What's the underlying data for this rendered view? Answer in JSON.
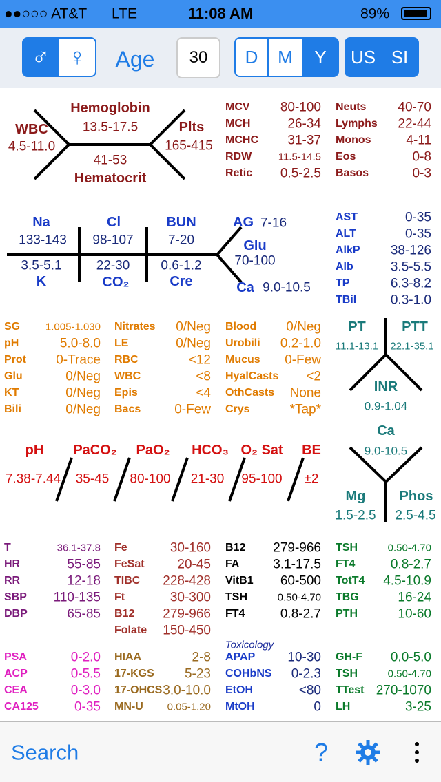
{
  "status_bar": {
    "carrier": "●●○○○ AT&T",
    "network": "LTE",
    "time": "11:08 AM",
    "battery": "89%"
  },
  "toolbar": {
    "male": "♂",
    "female": "♀",
    "age_label": "Age",
    "age_value": "30",
    "units": [
      "D",
      "M",
      "Y"
    ],
    "systems": [
      "US",
      "SI"
    ]
  },
  "cbc": {
    "hemoglobin_label": "Hemoglobin",
    "hemoglobin": "13.5-17.5",
    "wbc_label": "WBC",
    "wbc": "4.5-11.0",
    "plts_label": "Plts",
    "plts": "165-415",
    "hematocrit": "41-53",
    "hematocrit_label": "Hematocrit"
  },
  "bmp": {
    "na_label": "Na",
    "na": "133-143",
    "cl_label": "Cl",
    "cl": "98-107",
    "bun_label": "BUN",
    "bun": "7-20",
    "ag_label": "AG",
    "ag": "7-16",
    "glu_label": "Glu",
    "glu": "70-100",
    "k": "3.5-5.1",
    "k_label": "K",
    "co2": "22-30",
    "co2_label": "CO₂",
    "cre": "0.6-1.2",
    "cre_label": "Cre",
    "ca_label": "Ca",
    "ca": "9.0-10.5"
  },
  "coag": {
    "pt_label": "PT",
    "ptt_label": "PTT",
    "pt": "11.1-13.1",
    "ptt": "22.1-35.1",
    "inr_label": "INR",
    "inr": "0.9-1.04"
  },
  "minerals": {
    "ca_label": "Ca",
    "ca": "9.0-10.5",
    "mg_label": "Mg",
    "mg": "1.5-2.5",
    "phos_label": "Phos",
    "phos": "2.5-4.5"
  },
  "abg": {
    "labels": [
      "pH",
      "PaCO₂",
      "PaO₂",
      "HCO₃",
      "O₂ Sat",
      "BE"
    ],
    "values": [
      "7.38-7.44",
      "35-45",
      "80-100",
      "21-30",
      "95-100",
      "±2"
    ]
  },
  "lists": {
    "indices": [
      [
        "MCV",
        "80-100"
      ],
      [
        "MCH",
        "26-34"
      ],
      [
        "MCHC",
        "31-37"
      ],
      [
        "RDW",
        "11.5-14.5"
      ],
      [
        "Retic",
        "0.5-2.5"
      ]
    ],
    "diff": [
      [
        "Neuts",
        "40-70"
      ],
      [
        "Lymphs",
        "22-44"
      ],
      [
        "Monos",
        "4-11"
      ],
      [
        "Eos",
        "0-8"
      ],
      [
        "Basos",
        "0-3"
      ]
    ],
    "lft": [
      [
        "AST",
        "0-35"
      ],
      [
        "ALT",
        "0-35"
      ],
      [
        "AlkP",
        "38-126"
      ],
      [
        "Alb",
        "3.5-5.5"
      ],
      [
        "TP",
        "6.3-8.2"
      ],
      [
        "TBil",
        "0.3-1.0"
      ]
    ],
    "ua1": [
      [
        "SG",
        "1.005-1.030"
      ],
      [
        "pH",
        "5.0-8.0"
      ],
      [
        "Prot",
        "0-Trace"
      ],
      [
        "Glu",
        "0/Neg"
      ],
      [
        "KT",
        "0/Neg"
      ],
      [
        "Bili",
        "0/Neg"
      ]
    ],
    "ua2": [
      [
        "Nitrates",
        "0/Neg"
      ],
      [
        "LE",
        "0/Neg"
      ],
      [
        "RBC",
        "<12"
      ],
      [
        "WBC",
        "<8"
      ],
      [
        "Epis",
        "<4"
      ],
      [
        "Bacs",
        "0-Few"
      ]
    ],
    "ua3": [
      [
        "Blood",
        "0/Neg"
      ],
      [
        "Urobili",
        "0.2-1.0"
      ],
      [
        "Mucus",
        "0-Few"
      ],
      [
        "HyalCasts",
        "<2"
      ],
      [
        "OthCasts",
        "None"
      ],
      [
        "Crys",
        "*Tap*"
      ]
    ],
    "vitals": [
      [
        "T",
        "36.1-37.8"
      ],
      [
        "HR",
        "55-85"
      ],
      [
        "RR",
        "12-18"
      ],
      [
        "SBP",
        "110-135"
      ],
      [
        "DBP",
        "65-85"
      ]
    ],
    "iron": [
      [
        "Fe",
        "30-160"
      ],
      [
        "FeSat",
        "20-45"
      ],
      [
        "TIBC",
        "228-428"
      ],
      [
        "Ft",
        "30-300"
      ],
      [
        "B12",
        "279-966"
      ],
      [
        "Folate",
        "150-450"
      ]
    ],
    "vitamins": [
      [
        "B12",
        "279-966"
      ],
      [
        "FA",
        "3.1-17.5"
      ],
      [
        "VitB1",
        "60-500"
      ],
      [
        "TSH",
        "0.50-4.70"
      ],
      [
        "FT4",
        "0.8-2.7"
      ]
    ],
    "thyroid": [
      [
        "TSH",
        "0.50-4.70"
      ],
      [
        "FT4",
        "0.8-2.7"
      ],
      [
        "TotT4",
        "4.5-10.9"
      ],
      [
        "TBG",
        "16-24"
      ],
      [
        "PTH",
        "10-60"
      ]
    ],
    "tumor": [
      [
        "PSA",
        "0-2.0"
      ],
      [
        "ACP",
        "0-5.5"
      ],
      [
        "CEA",
        "0-3.0"
      ],
      [
        "CA125",
        "0-35"
      ]
    ],
    "misc": [
      [
        "HIAA",
        "2-8"
      ],
      [
        "17-KGS",
        "5-23"
      ],
      [
        "17-OHCS",
        "3.0-10.0"
      ],
      [
        "MN-U",
        "0.05-1.20"
      ]
    ],
    "tox": [
      [
        "APAP",
        "10-30"
      ],
      [
        "COHbNS",
        "0-2.3"
      ],
      [
        "EtOH",
        "<80"
      ],
      [
        "MtOH",
        "0"
      ]
    ],
    "endo": [
      [
        "GH-F",
        "0.0-5.0"
      ],
      [
        "TSH",
        "0.50-4.70"
      ],
      [
        "TTest",
        "270-1070"
      ],
      [
        "LH",
        "3-25"
      ]
    ]
  },
  "tox_title": "Toxicology",
  "tab_bar": {
    "search": "Search",
    "help": "?"
  }
}
